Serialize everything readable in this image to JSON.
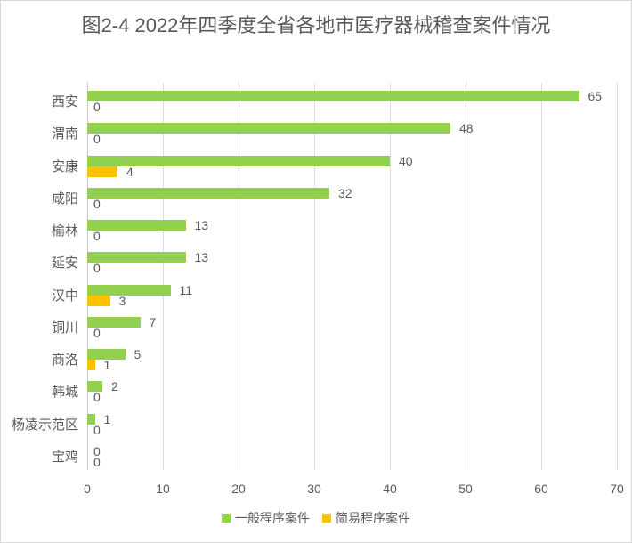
{
  "chart_data": {
    "type": "bar",
    "orientation": "horizontal",
    "title": "图2-4 2022年四季度全省各地市医疗器械稽查案件情况",
    "categories": [
      "西安",
      "渭南",
      "安康",
      "咸阳",
      "榆林",
      "延安",
      "汉中",
      "铜川",
      "商洛",
      "韩城",
      "杨凌示范区",
      "宝鸡"
    ],
    "series": [
      {
        "name": "一般程序案件",
        "color": "#92d050",
        "values": [
          65,
          48,
          40,
          32,
          13,
          13,
          11,
          7,
          5,
          2,
          1,
          0
        ]
      },
      {
        "name": "简易程序案件",
        "color": "#ffc000",
        "values": [
          0,
          0,
          4,
          0,
          0,
          0,
          3,
          0,
          1,
          0,
          0,
          0
        ]
      }
    ],
    "xlabel": "",
    "ylabel": "",
    "xlim": [
      0,
      70
    ],
    "x_ticks": [
      0,
      10,
      20,
      30,
      40,
      50,
      60,
      70
    ],
    "grid": true,
    "data_labels": true,
    "legend_position": "bottom"
  },
  "colors": {
    "text": "#595959",
    "gridline": "#dcdcdc",
    "axis_line": "#c9c9c9",
    "border": "#d8d8d8",
    "background": "#ffffff"
  }
}
